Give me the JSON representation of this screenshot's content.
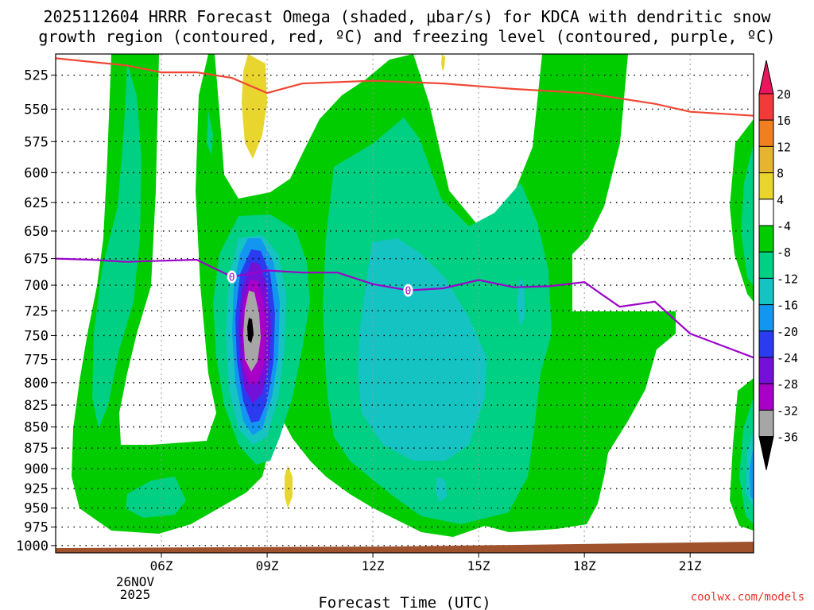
{
  "title_line1": "2025112604 HRRR Forecast Omega (shaded, μbar/s) for KDCA with dendritic snow",
  "title_line2": "growth region (contoured, red, ºC) and freezing level (contoured, purple, ºC)",
  "credit": "coolwx.com/models",
  "chart_data": {
    "type": "contour",
    "title": "2025112604 HRRR Forecast Omega (shaded, μbar/s) for KDCA with dendritic snow growth region (contoured, red, ºC) and freezing level (contoured, purple, ºC)",
    "xlabel": "Forecast Time (UTC)",
    "ylabel": "",
    "x_ticks": [
      "06Z",
      "09Z",
      "12Z",
      "15Z",
      "18Z",
      "21Z"
    ],
    "x_ticks_hours": [
      6,
      9,
      12,
      15,
      18,
      21
    ],
    "x_date_label": [
      "26NOV",
      "2025"
    ],
    "xlim_hours": [
      3,
      22.8
    ],
    "y_ticks": [
      525,
      550,
      575,
      600,
      625,
      650,
      675,
      700,
      725,
      750,
      775,
      800,
      825,
      850,
      875,
      900,
      925,
      950,
      975,
      1000
    ],
    "ylim_hpa": [
      1010,
      510
    ],
    "y_scale": "log-pressure",
    "grid": true,
    "colorbar": {
      "levels": [
        "20",
        "16",
        "12",
        "8",
        "4",
        "-4",
        "-8",
        "-12",
        "-16",
        "-20",
        "-24",
        "-28",
        "-32",
        "-36"
      ],
      "colors": [
        "#e8155f",
        "#f23a3a",
        "#f07f22",
        "#e5b431",
        "#e8d62e",
        "#ffffff",
        "#00cc00",
        "#00d084",
        "#16c3c3",
        "#1296f0",
        "#2a3bf0",
        "#7510d8",
        "#a900c7",
        "#a6a6a6",
        "#000000"
      ]
    },
    "series": [
      {
        "name": "dendritic snow growth region (red)",
        "color": "#f04733",
        "hours": [
          3,
          5,
          6,
          7,
          8,
          9,
          10,
          12,
          14,
          16,
          18,
          20,
          21,
          22.8
        ],
        "hpa": [
          513,
          518,
          523,
          523,
          527,
          538,
          531,
          529,
          531,
          535,
          538,
          546,
          552,
          555
        ]
      },
      {
        "name": "freezing level (purple)",
        "color": "#9a05c8",
        "label": "0",
        "hours": [
          3,
          4,
          5,
          6,
          7,
          8,
          9,
          10,
          11,
          12,
          13,
          14,
          15,
          16,
          17,
          18,
          18.5,
          19,
          20,
          21,
          22.8
        ],
        "hpa": [
          675,
          676,
          678,
          677,
          676,
          692,
          686,
          688,
          688,
          699,
          705,
          703,
          695,
          702,
          701,
          697,
          709,
          721,
          716,
          748,
          773
        ]
      }
    ],
    "omega_fields": [
      {
        "value": "-4",
        "color": "#00cc00",
        "description": "weak ascent regions across most of the period"
      },
      {
        "value": "-36",
        "color": "#000000",
        "description": "strongest ascent near 09Z around 750 hPa"
      }
    ]
  }
}
